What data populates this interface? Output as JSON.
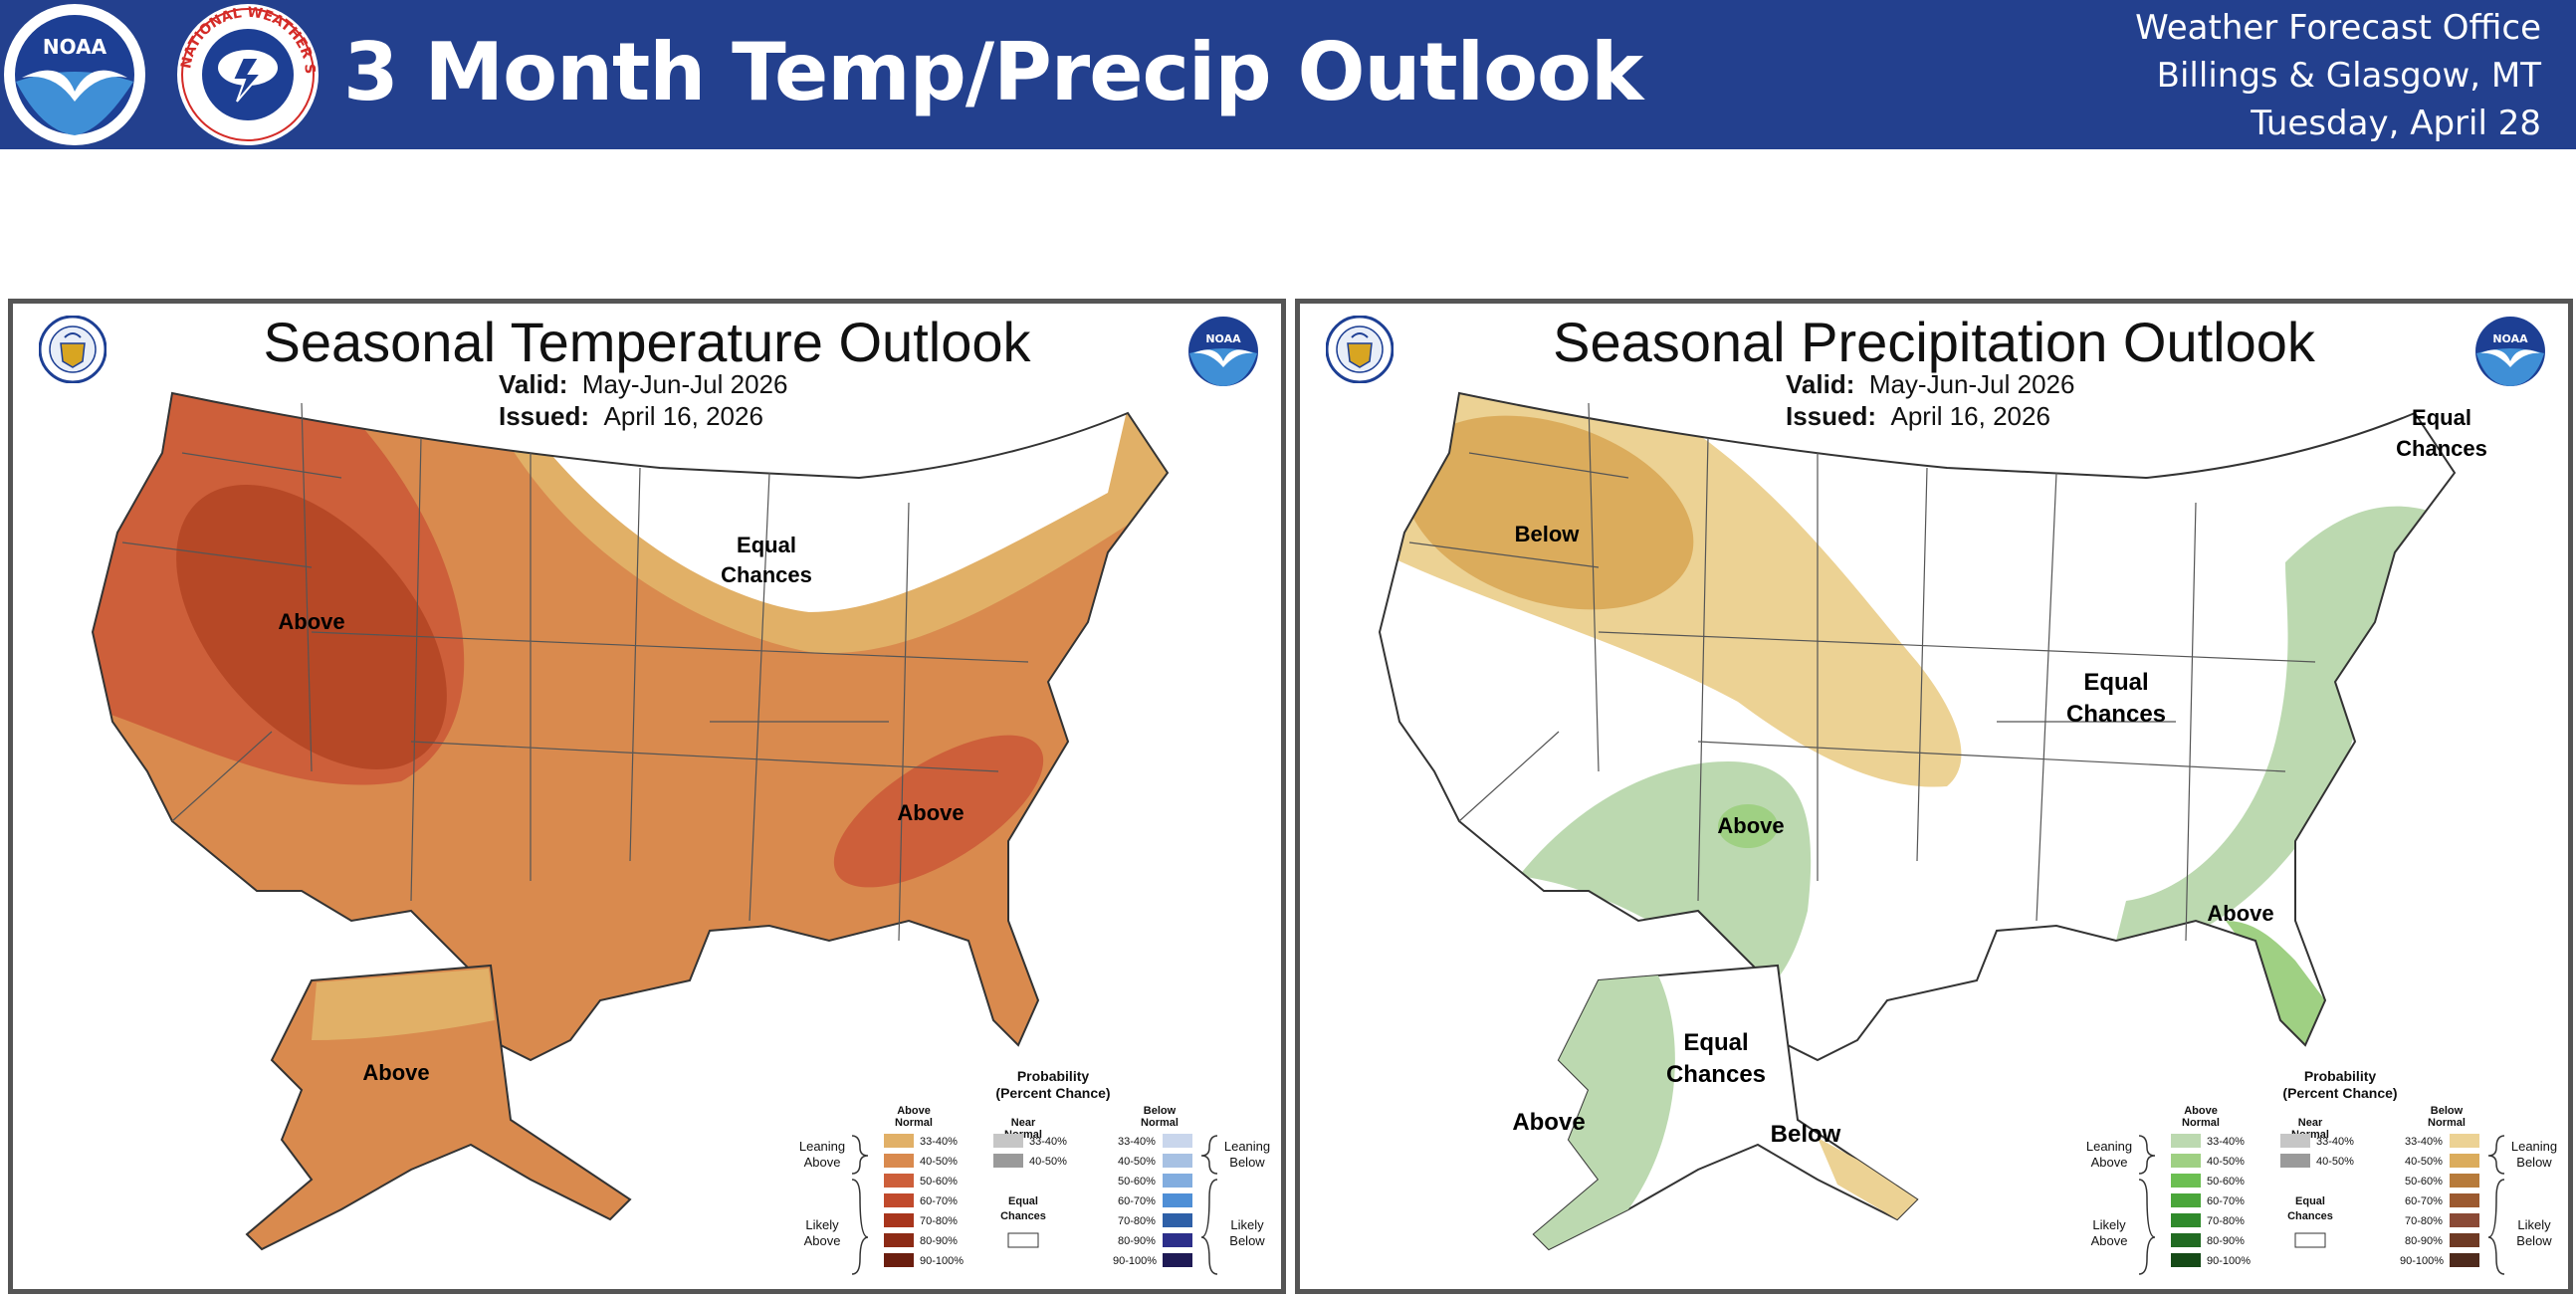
{
  "header": {
    "title": "3 Month Temp/Precip Outlook",
    "office_line1": "Weather Forecast Office",
    "office_line2": "Billings & Glasgow, MT",
    "date": "Tuesday, April 28",
    "noaa_logo_text": "NOAA",
    "nws_logo_text": "NATIONAL WEATHER SERVICE",
    "colors": {
      "banner": "#23408e",
      "text": "#ffffff"
    }
  },
  "temperature": {
    "title": "Seasonal Temperature Outlook",
    "valid_label": "Valid:",
    "valid_value": "May-Jun-Jul 2026",
    "issued_label": "Issued:",
    "issued_value": "April 16, 2026",
    "labels": {
      "west": "Above",
      "southeast": "Above",
      "alaska": "Above",
      "equal1": "Equal",
      "equal2": "Chances"
    }
  },
  "precipitation": {
    "title": "Seasonal Precipitation Outlook",
    "valid_label": "Valid:",
    "valid_value": "May-Jun-Jul 2026",
    "issued_label": "Issued:",
    "issued_value": "April 16, 2026",
    "labels": {
      "below_nw": "Below",
      "above_sw": "Above",
      "above_se": "Above",
      "equal_ne1": "Equal",
      "equal_ne2": "Chances",
      "equal_c1": "Equal",
      "equal_c2": "Chances",
      "equal_ak1": "Equal",
      "equal_ak2": "Chances",
      "above_ak": "Above",
      "below_ak": "Below"
    }
  },
  "legend": {
    "title1": "Probability",
    "title2": "(Percent Chance)",
    "above1": "Above",
    "above2": "Normal",
    "near1": "Near",
    "near2": "Normal",
    "below1": "Below",
    "below2": "Normal",
    "leaning": "Leaning",
    "likely": "Likely",
    "above_word": "Above",
    "below_word": "Below",
    "equal1": "Equal",
    "equal2": "Chances",
    "ranges": [
      "33-40%",
      "40-50%",
      "50-60%",
      "60-70%",
      "70-80%",
      "80-90%",
      "90-100%"
    ],
    "near_ranges": [
      "33-40%",
      "40-50%"
    ]
  }
}
